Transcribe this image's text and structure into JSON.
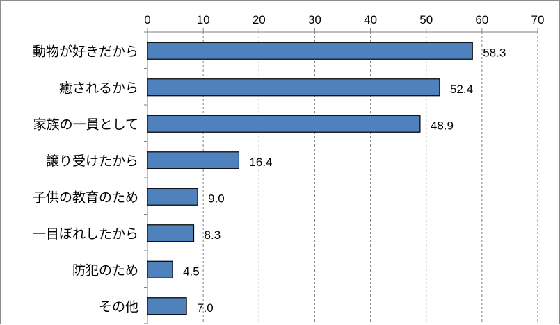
{
  "chart_data": {
    "type": "bar",
    "orientation": "horizontal",
    "title": "",
    "xlabel": "",
    "ylabel": "",
    "categories": [
      "動物が好きだから",
      "癒されるから",
      "家族の一員として",
      "譲り受けたから",
      "子供の教育のため",
      "一目ぼれしたから",
      "防犯のため",
      "その他"
    ],
    "values": [
      58.3,
      52.4,
      48.9,
      16.4,
      9.0,
      8.3,
      4.5,
      7.0
    ],
    "value_labels": [
      "58.3",
      "52.4",
      "48.9",
      "16.4",
      "9.0",
      "8.3",
      "4.5",
      "7.0"
    ],
    "xlim": [
      0,
      70
    ],
    "xticks": [
      0,
      10,
      20,
      30,
      40,
      50,
      60,
      70
    ],
    "xtick_labels": [
      "0",
      "10",
      "20",
      "30",
      "40",
      "50",
      "60",
      "70"
    ],
    "axis_position": "top",
    "grid": "vertical dashed",
    "legend": "none",
    "colors": {
      "bar_fill": "#4f81bd",
      "bar_stroke": "#000000",
      "grid": "#7f7f7f",
      "axis": "#7f7f7f"
    }
  }
}
